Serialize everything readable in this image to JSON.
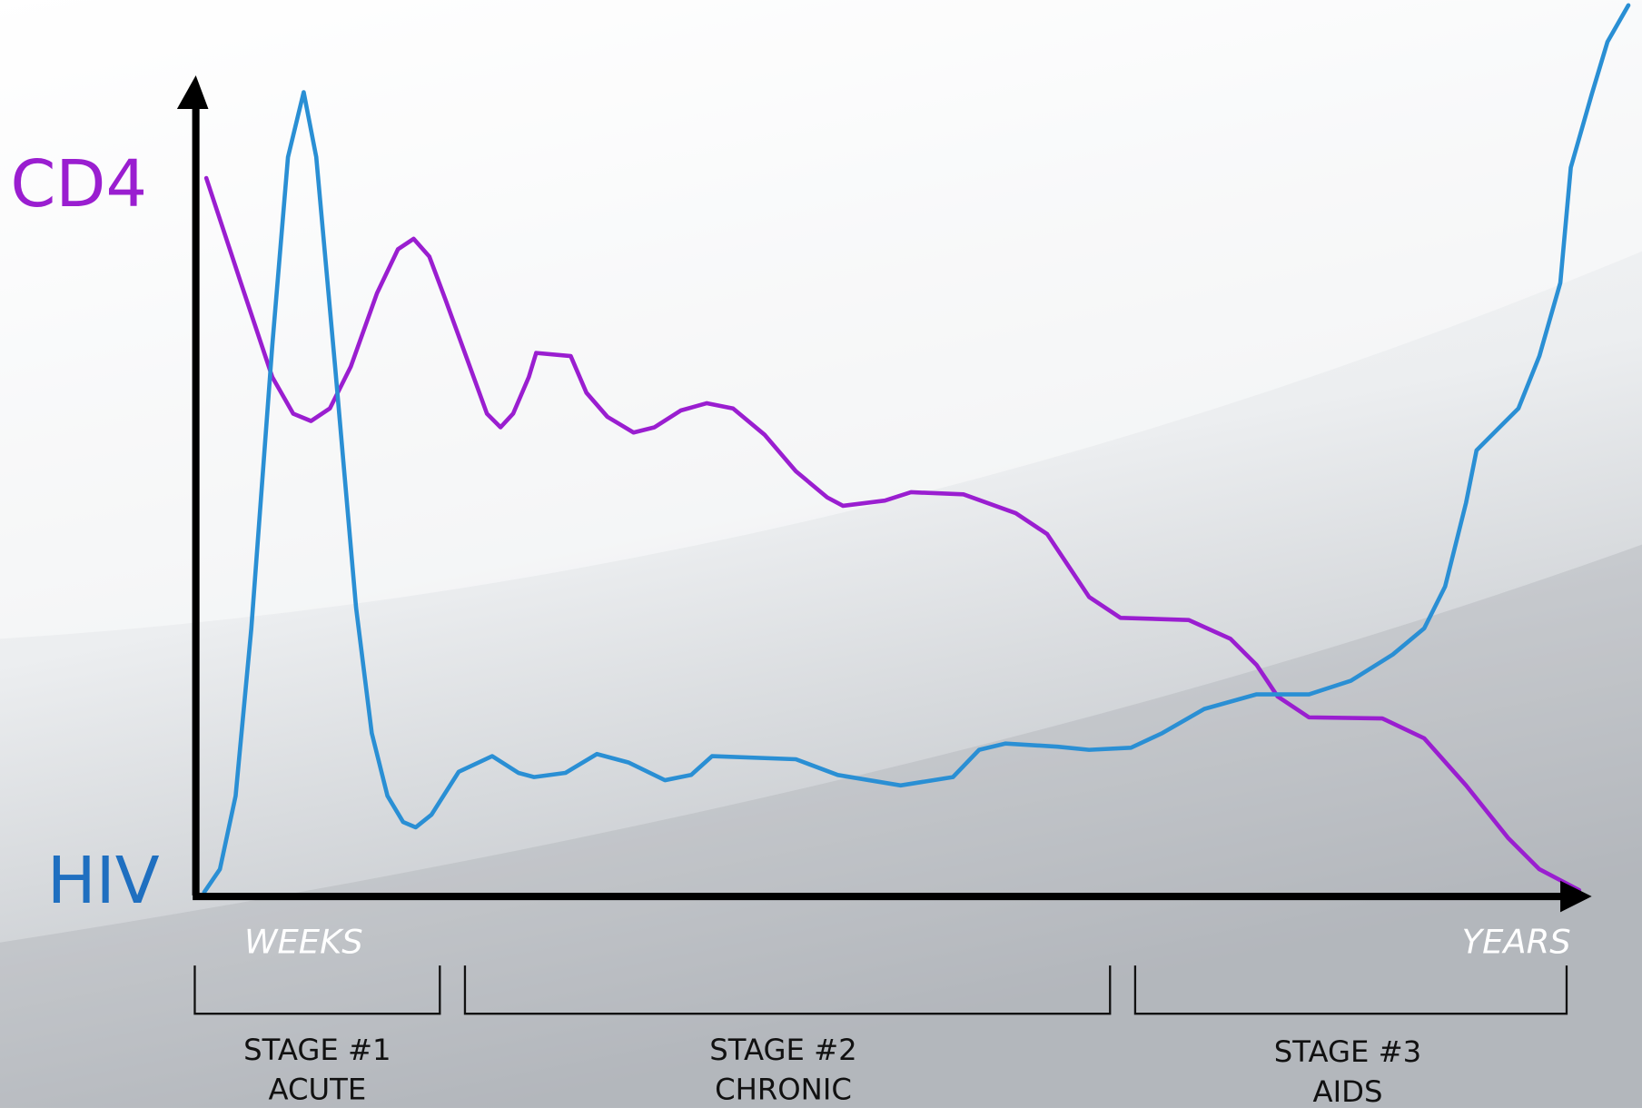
{
  "labels": {
    "cd4": "CD4",
    "hiv": "HIV",
    "weeks": "WEEKS",
    "years": "YEARS"
  },
  "stages": [
    {
      "number": "STAGE #1",
      "name": "ACUTE"
    },
    {
      "number": "STAGE #2",
      "name": "CHRONIC"
    },
    {
      "number": "STAGE #3",
      "name": "AIDS"
    }
  ]
}
